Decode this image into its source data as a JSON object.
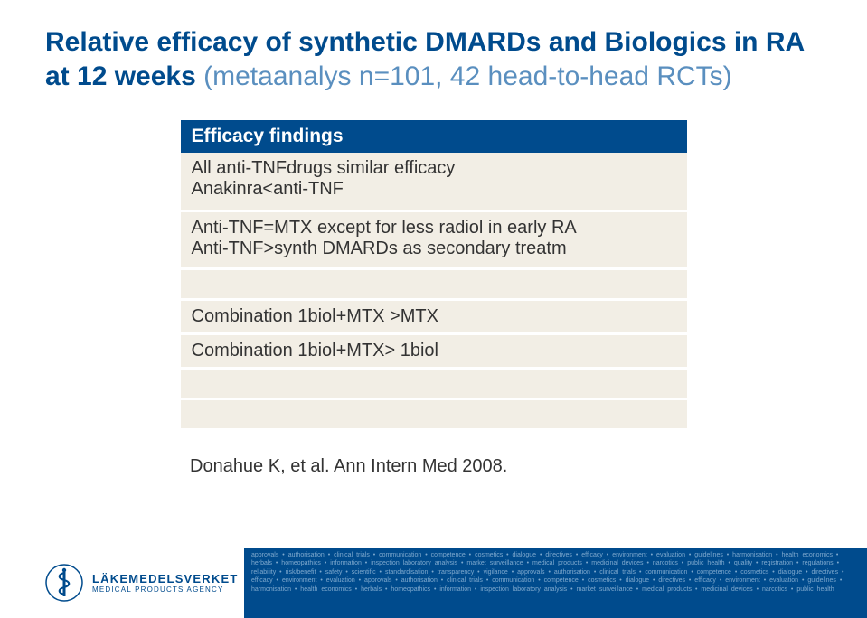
{
  "title": {
    "main": "Relative efficacy of synthetic DMARDs and Biologics in RA at 12 weeks",
    "sub": "(metaanalys n=101, 42 head-to-head RCTs)"
  },
  "table": {
    "header": "Efficacy findings",
    "rows": [
      "All anti-TNFdrugs similar efficacy\nAnakinra<anti-TNF",
      "Anti-TNF=MTX except for less radiol in early RA\nAnti-TNF>synth DMARDs as secondary treatm",
      "",
      "Combination 1biol+MTX >MTX",
      "Combination 1biol+MTX> 1biol",
      "",
      ""
    ]
  },
  "citation": "Donahue K, et al. Ann Intern Med 2008.",
  "logo": {
    "line1": "LÄKEMEDELSVERKET",
    "line2": "MEDICAL PRODUCTS AGENCY"
  },
  "footer_words": "approvals • authorisation • clinical trials • communication • competence • cosmetics • dialogue • directives • efficacy • environment • evaluation • guidelines • harmonisation • health economics • herbals • homeopathics • information • inspection laboratory analysis • market surveillance • medical products • medicinal devices • narcotics • public health • quality • registration • regulations • reliability • risk/benefit • safety • scientific • standardisation • transparency • vigilance • approvals • authorisation • clinical trials • communication • competence • cosmetics • dialogue • directives • efficacy • environment • evaluation • approvals • authorisation • clinical trials • communication • competence • cosmetics • dialogue • directives • efficacy • environment • evaluation • guidelines • harmonisation • health economics • herbals • homeopathics • information • inspection laboratory analysis • market surveillance • medical products • medicinal devices • narcotics • public health",
  "colors": {
    "primary": "#004b8d",
    "subtitle": "#5a8fbf",
    "row_bg": "#f2eee5",
    "text": "#333333",
    "footer_text": "#7ea9ce"
  }
}
